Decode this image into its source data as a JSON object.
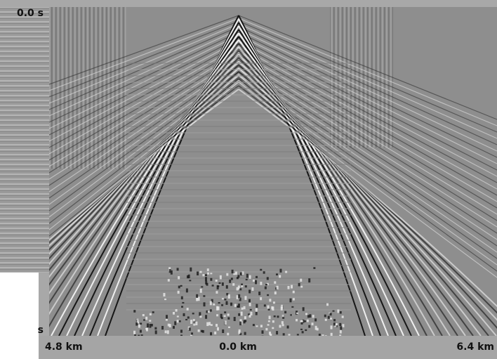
{
  "labels": {
    "time_top": "0.0 s",
    "time_bottom": "s",
    "offset_left": "4.8 km",
    "offset_center": "0.0 km",
    "offset_right": "6.4 km"
  }
}
